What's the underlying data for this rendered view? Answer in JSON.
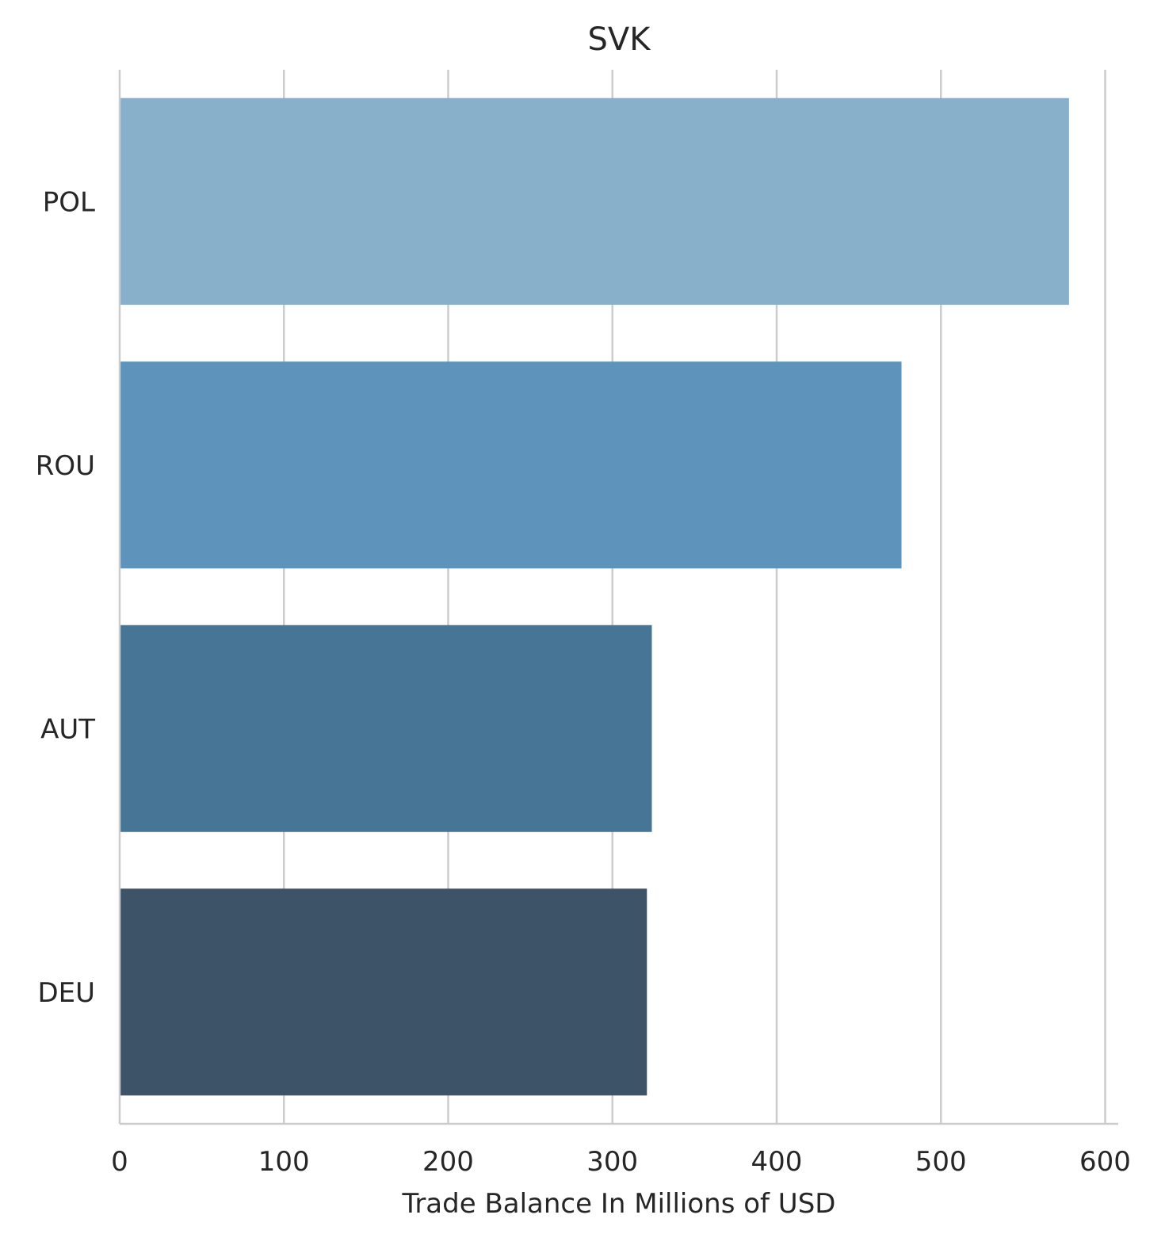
{
  "chart_data": {
    "type": "bar",
    "orientation": "horizontal",
    "title": "SVK",
    "xlabel": "Trade Balance In Millions of USD",
    "ylabel": "",
    "categories": [
      "POL",
      "ROU",
      "AUT",
      "DEU"
    ],
    "values": [
      578,
      476,
      324,
      321
    ],
    "colors": [
      "#89b0cb",
      "#5e94bb",
      "#467596",
      "#3d5468"
    ],
    "xlim": [
      0,
      608
    ],
    "xticks": [
      0,
      100,
      200,
      300,
      400,
      500,
      600
    ],
    "xtick_labels": [
      "0",
      "100",
      "200",
      "300",
      "400",
      "500",
      "600"
    ],
    "grid": "vertical",
    "legend": "none"
  }
}
